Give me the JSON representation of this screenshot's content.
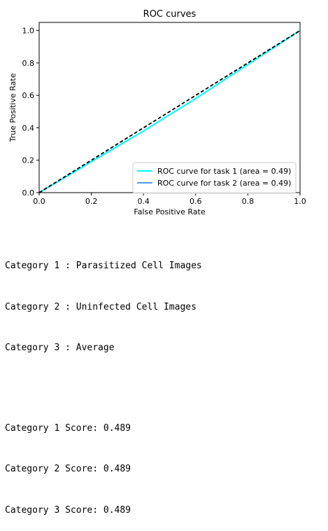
{
  "chart_data": {
    "type": "line",
    "title": "ROC curves",
    "xlabel": "False Positive Rate",
    "ylabel": "True Positive Rate",
    "xlim": [
      0.0,
      1.0
    ],
    "ylim": [
      0.0,
      1.05
    ],
    "x_ticks": [
      "0.0",
      "0.2",
      "0.4",
      "0.6",
      "0.8",
      "1.0"
    ],
    "y_ticks": [
      "0.0",
      "0.2",
      "0.4",
      "0.6",
      "0.8",
      "1.0"
    ],
    "grid": false,
    "legend_position": "lower-right",
    "series": [
      {
        "name": "ROC curve for task 1 (area = 0.49)",
        "color": "#00ffff",
        "x": [
          0.0,
          0.1,
          0.2,
          0.3,
          0.4,
          0.5,
          0.6,
          0.7,
          0.8,
          0.9,
          1.0
        ],
        "y": [
          0.0,
          0.095,
          0.19,
          0.285,
          0.38,
          0.48,
          0.58,
          0.685,
          0.79,
          0.895,
          1.0
        ]
      },
      {
        "name": "ROC curve for task 2 (area = 0.49)",
        "color": "#5599ff",
        "x": [
          0.0,
          0.1,
          0.2,
          0.3,
          0.4,
          0.5,
          0.6,
          0.7,
          0.8,
          0.9,
          1.0
        ],
        "y": [
          0.0,
          0.095,
          0.19,
          0.285,
          0.38,
          0.48,
          0.58,
          0.685,
          0.79,
          0.895,
          1.0
        ]
      },
      {
        "name": "",
        "color": "#000000",
        "style": "dashed",
        "x": [
          0.0,
          1.0
        ],
        "y": [
          0.0,
          1.0
        ]
      }
    ]
  },
  "output": {
    "categories": [
      "Category 1 : Parasitized Cell Images",
      "Category 2 : Uninfected Cell Images",
      "Category 3 : Average"
    ],
    "scores": [
      "Category 1 Score: 0.489",
      "Category 2 Score: 0.489",
      "Category 3 Score: 0.489"
    ]
  }
}
